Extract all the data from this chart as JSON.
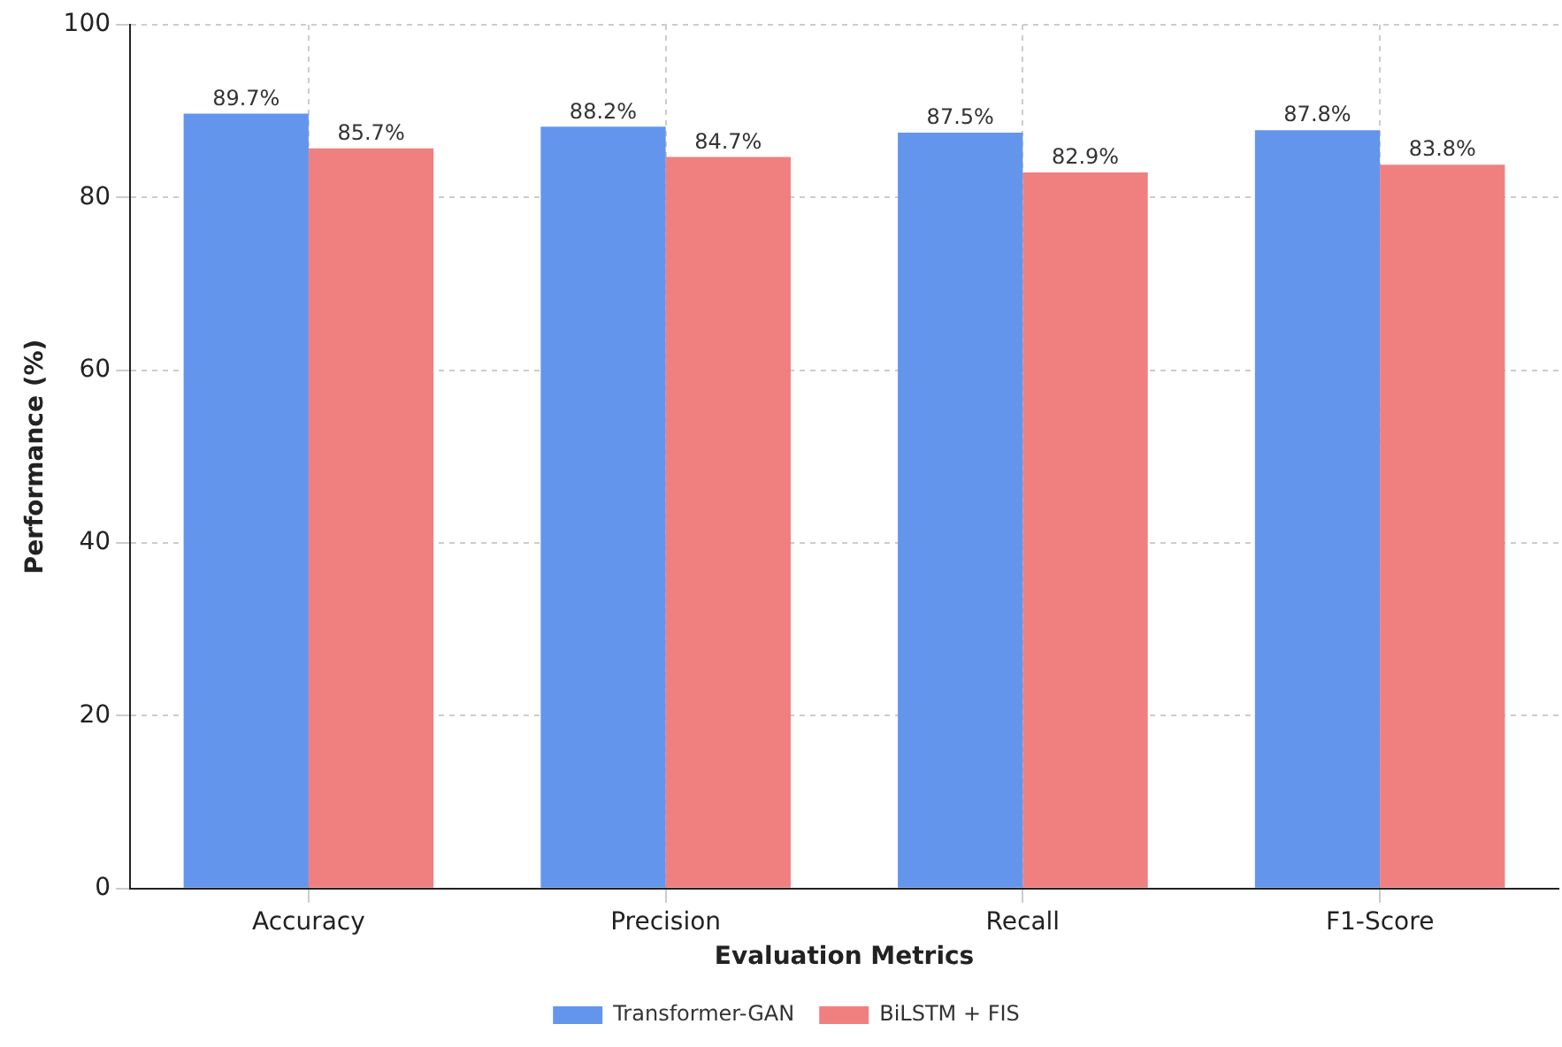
{
  "chart_data": {
    "type": "bar",
    "xlabel": "Evaluation Metrics",
    "ylabel": "Performance (%)",
    "categories": [
      "Accuracy",
      "Precision",
      "Recall",
      "F1-Score"
    ],
    "series": [
      {
        "name": "Transformer-GAN",
        "color": "#6495ed",
        "values": [
          89.7,
          88.2,
          87.5,
          87.8
        ],
        "value_labels": [
          "89.7%",
          "88.2%",
          "87.5%",
          "87.8%"
        ]
      },
      {
        "name": "BiLSTM + FIS",
        "color": "#f08080",
        "values": [
          85.7,
          84.7,
          82.9,
          83.8
        ],
        "value_labels": [
          "85.7%",
          "84.7%",
          "82.9%",
          "83.8%"
        ]
      }
    ],
    "ylim": [
      0,
      100
    ],
    "yticks": [
      0,
      20,
      40,
      60,
      80,
      100
    ],
    "grid": true,
    "legend": "bottom"
  }
}
